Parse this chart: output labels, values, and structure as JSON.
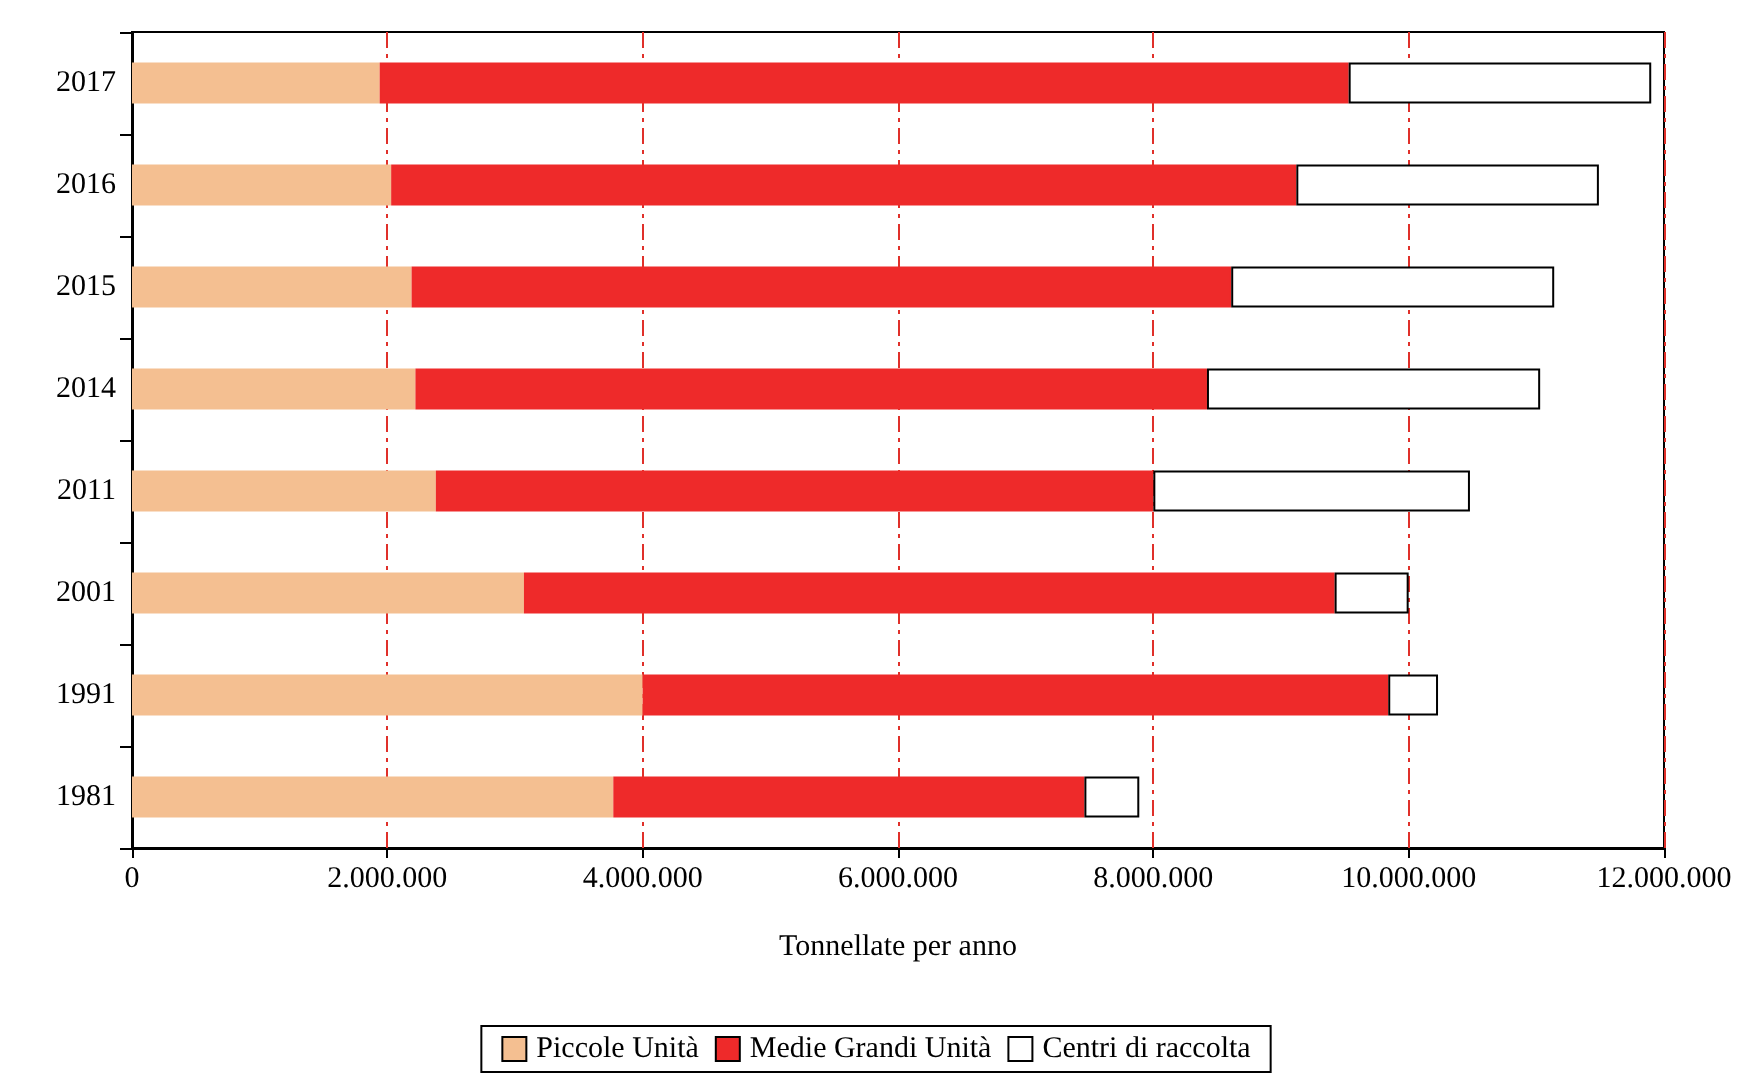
{
  "chart_data": {
    "type": "bar",
    "orientation": "horizontal",
    "stacked": true,
    "xlabel": "Tonnellate per anno",
    "categories": [
      "2017",
      "2016",
      "2015",
      "2014",
      "2011",
      "2001",
      "1991",
      "1981"
    ],
    "series": [
      {
        "name": "Piccole Unità",
        "color": "#f4bf91",
        "values": [
          1940000,
          2030000,
          2190000,
          2220000,
          2380000,
          3070000,
          4000000,
          3770000
        ]
      },
      {
        "name": "Medie Grandi Unità",
        "color": "#ee2a2a",
        "values": [
          7590000,
          7090000,
          6420000,
          6200000,
          5620000,
          6350000,
          5840000,
          3690000
        ]
      },
      {
        "name": "Centri di raccolta",
        "color": "#ffffff",
        "values": [
          2370000,
          2370000,
          2530000,
          2610000,
          2480000,
          580000,
          390000,
          430000
        ]
      }
    ],
    "xlim": [
      0,
      12000000
    ],
    "xticks": [
      0,
      {
        "value": 2000000,
        "label": "2.000.000"
      },
      {
        "value": 4000000,
        "label": "4.000.000"
      },
      {
        "value": 6000000,
        "label": "6.000.000"
      },
      {
        "value": 8000000,
        "label": "8.000.000"
      },
      {
        "value": 10000000,
        "label": "10.000.000"
      },
      {
        "value": 12000000,
        "label": "12.000.000"
      }
    ],
    "grid": "x",
    "legend": "bottom"
  }
}
